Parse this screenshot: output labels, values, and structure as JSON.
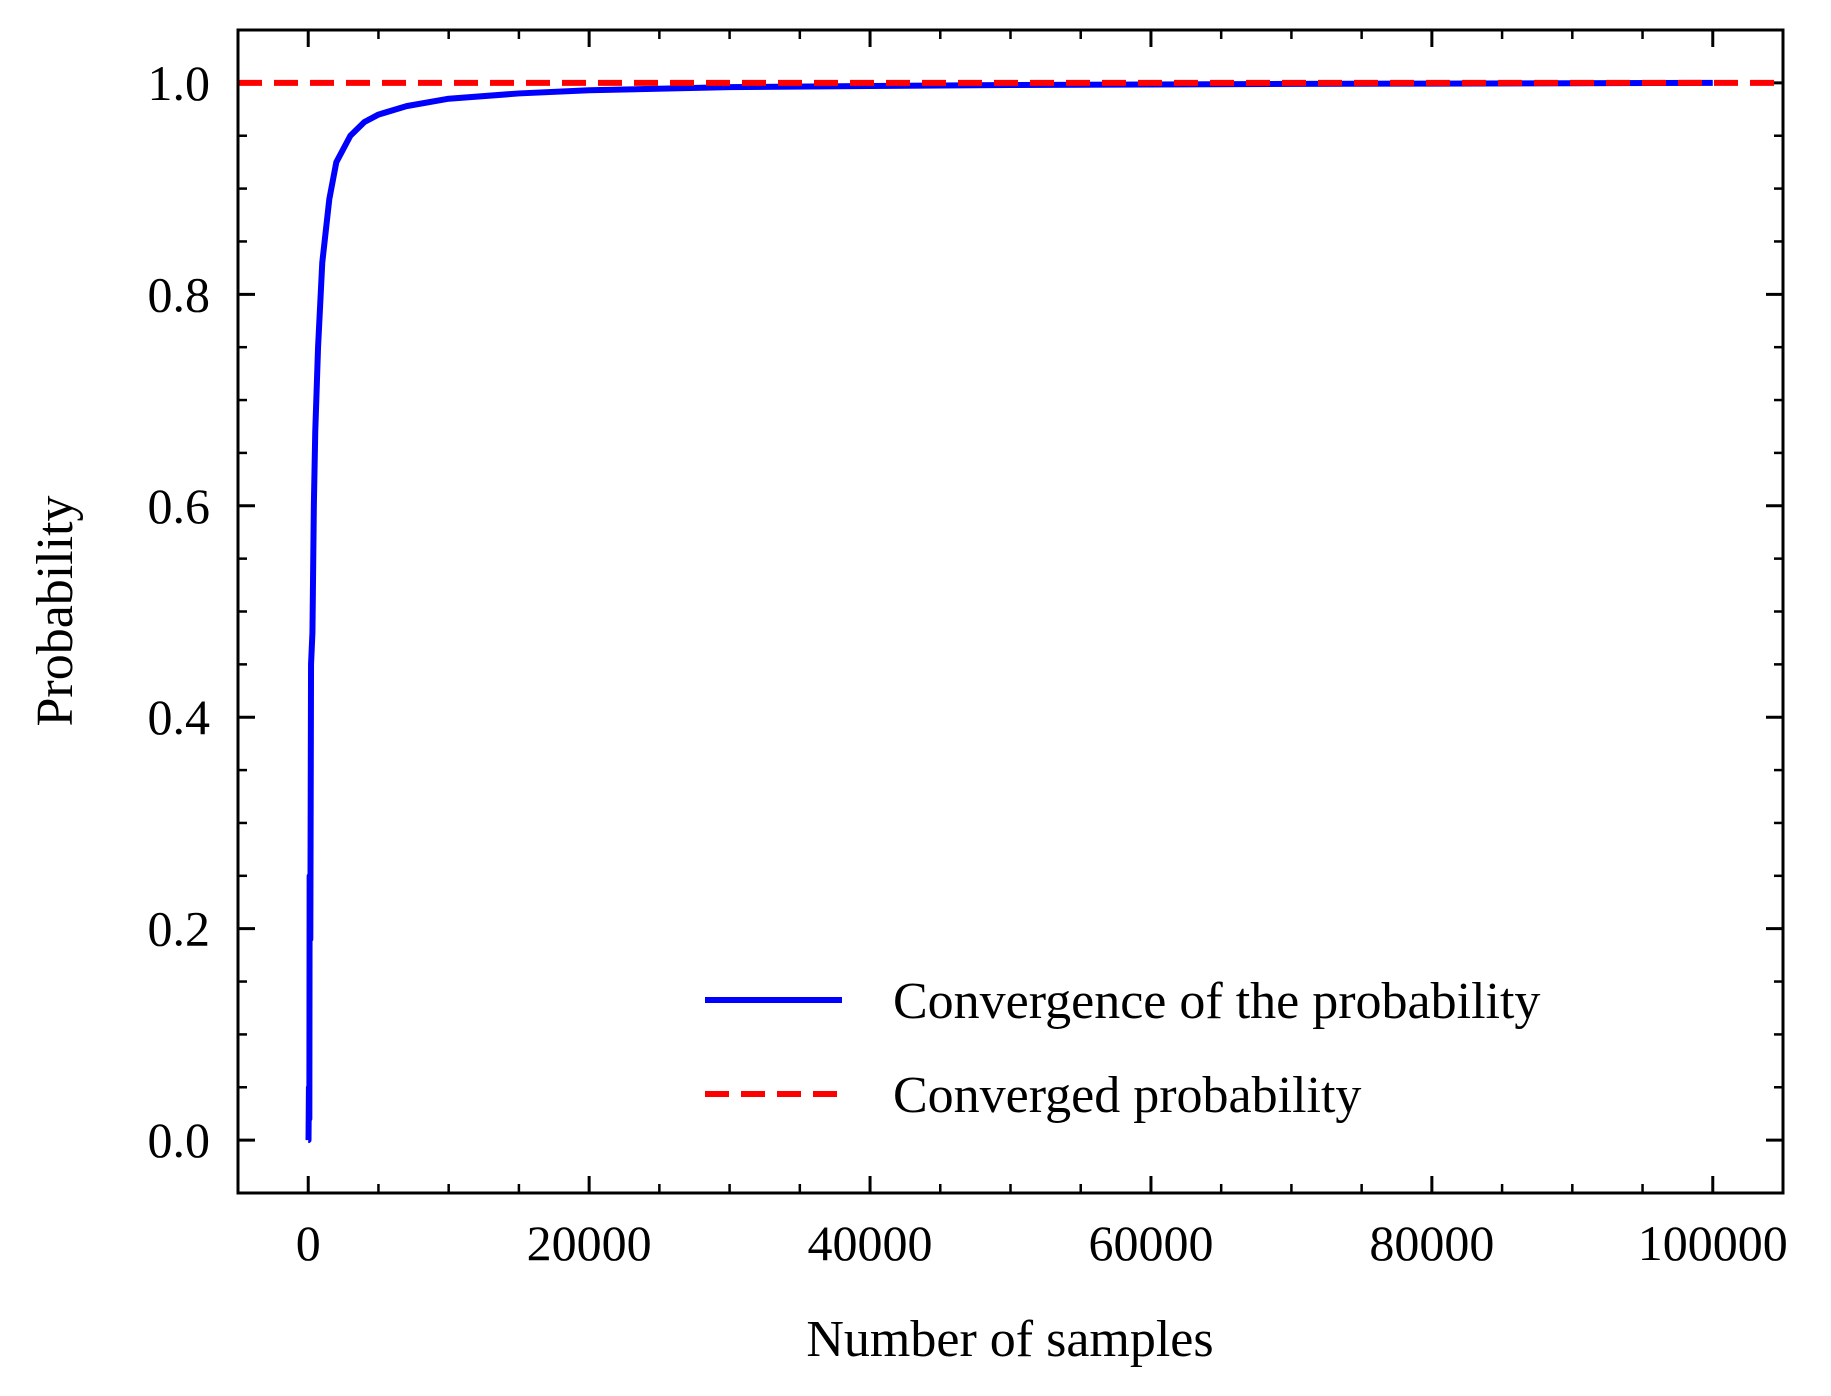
{
  "chart_data": {
    "type": "line",
    "title": "",
    "xlabel": "Number of samples",
    "ylabel": "Probability",
    "xlim": [
      -5000,
      105000
    ],
    "ylim": [
      -0.05,
      1.05
    ],
    "xticks": [
      0,
      20000,
      40000,
      60000,
      80000,
      100000
    ],
    "xtick_labels": [
      "0",
      "20000",
      "40000",
      "60000",
      "80000",
      "100000"
    ],
    "xminor_step": 5000,
    "yticks": [
      0.0,
      0.2,
      0.4,
      0.6,
      0.8,
      1.0
    ],
    "ytick_labels": [
      "0.0",
      "0.2",
      "0.4",
      "0.6",
      "0.8",
      "1.0"
    ],
    "yminor_step": 0.05,
    "grid": false,
    "legend_position": "lower-right",
    "series": [
      {
        "name": "Convergence of the probability",
        "style": "solid",
        "color": "#0000ff",
        "x": [
          0,
          20,
          50,
          80,
          100,
          150,
          200,
          300,
          400,
          500,
          700,
          1000,
          1500,
          2000,
          3000,
          4000,
          5000,
          7000,
          10000,
          15000,
          20000,
          30000,
          40000,
          50000,
          60000,
          70000,
          80000,
          90000,
          100000
        ],
        "y": [
          0.0,
          0.0,
          0.05,
          0.02,
          0.25,
          0.19,
          0.45,
          0.48,
          0.6,
          0.67,
          0.75,
          0.83,
          0.89,
          0.925,
          0.95,
          0.963,
          0.97,
          0.978,
          0.985,
          0.99,
          0.993,
          0.996,
          0.997,
          0.998,
          0.9985,
          0.999,
          0.9993,
          0.9996,
          1.0
        ]
      },
      {
        "name": "Converged probability",
        "style": "dashed",
        "color": "#ff0000",
        "x": [
          -5000,
          105000
        ],
        "y": [
          1.0,
          1.0
        ]
      }
    ]
  }
}
